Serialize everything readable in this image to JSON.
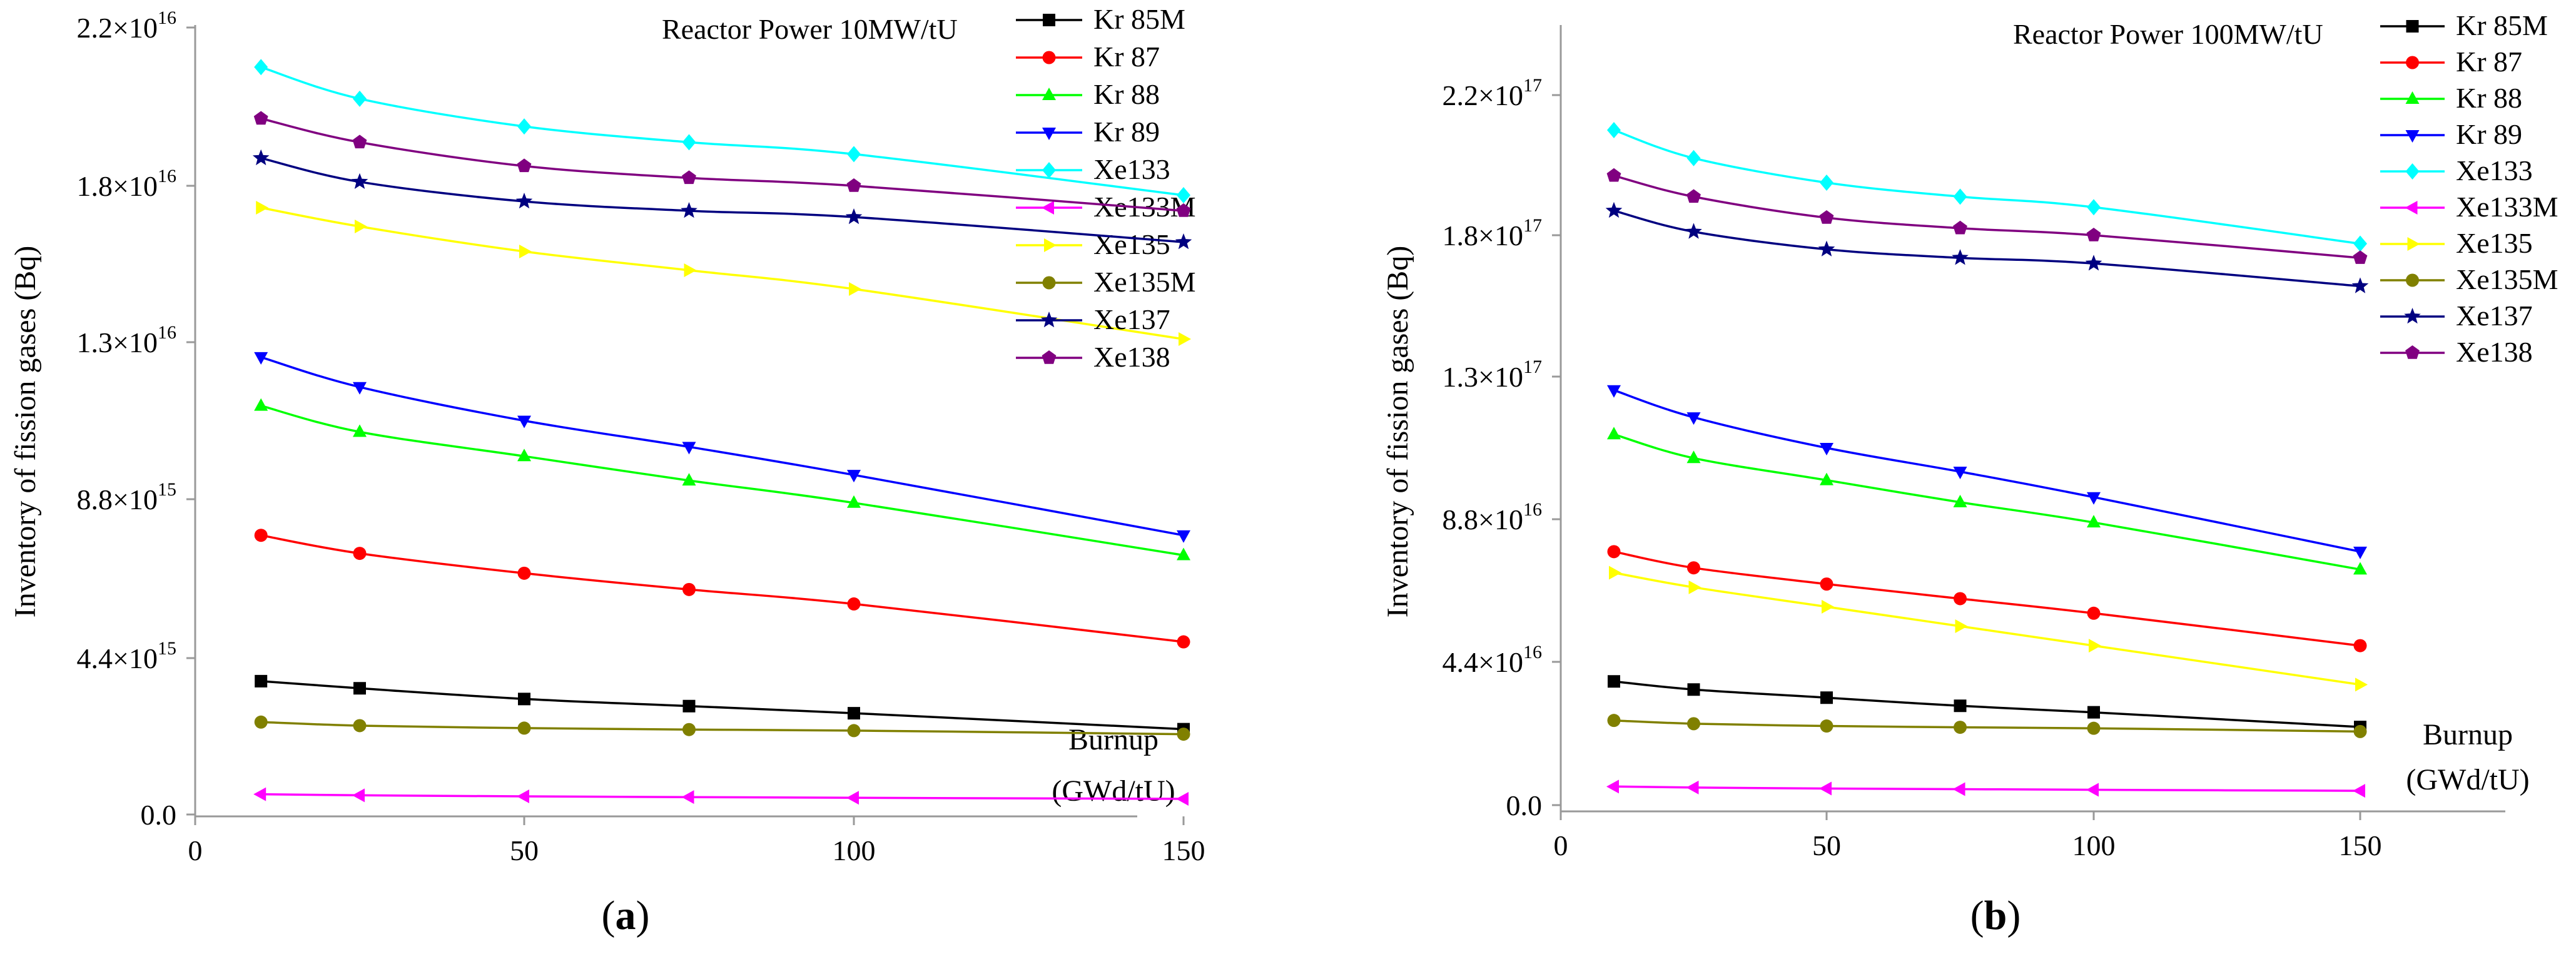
{
  "chart_data": [
    {
      "type": "line",
      "panel_label": "a",
      "annotation": "Reactor Power 10MW/tU",
      "ylabel": "Inventory of fission gases (Bq)",
      "xlabel_lines": [
        "Burnup",
        "(GWd/tU)"
      ],
      "x": [
        10,
        25,
        50,
        75,
        100,
        150
      ],
      "xlim": [
        0,
        175
      ],
      "xticks": [
        0,
        50,
        100,
        150
      ],
      "ylim": [
        0,
        2.2e+16
      ],
      "yticks": [
        {
          "value": 0,
          "mantissa": "0.0",
          "exp": ""
        },
        {
          "value": 4400000000000000.0,
          "mantissa": "4.4×10",
          "exp": "15"
        },
        {
          "value": 8800000000000000.0,
          "mantissa": "8.8×10",
          "exp": "15"
        },
        {
          "value": 1.3e+16,
          "mantissa": "1.3×10",
          "exp": "16"
        },
        {
          "value": 1.8e+16,
          "mantissa": "1.8×10",
          "exp": "16"
        },
        {
          "value": 2.2e+16,
          "mantissa": "2.2×10",
          "exp": "16"
        }
      ],
      "grid": false,
      "legend_position": "top-right",
      "series": [
        {
          "name": "Kr 85M",
          "color": "#000000",
          "marker": "square",
          "values": [
            3750000000000000.0,
            3550000000000000.0,
            3250000000000000.0,
            3050000000000000.0,
            2850000000000000.0,
            2400000000000000.0
          ]
        },
        {
          "name": "Kr 87",
          "color": "#ff0000",
          "marker": "circle",
          "values": [
            7800000000000000.0,
            7300000000000000.0,
            6750000000000000.0,
            6300000000000000.0,
            5900000000000000.0,
            4850000000000000.0
          ]
        },
        {
          "name": "Kr 88",
          "color": "#00ff00",
          "marker": "triangle-up",
          "values": [
            1.13e+16,
            1.06e+16,
            9950000000000000.0,
            9300000000000000.0,
            8700000000000000.0,
            7250000000000000.0
          ]
        },
        {
          "name": "Kr 89",
          "color": "#0000ff",
          "marker": "triangle-down",
          "values": [
            1.26e+16,
            1.18e+16,
            1.09e+16,
            1.02e+16,
            9450000000000000.0,
            7800000000000000.0
          ]
        },
        {
          "name": "Xe133",
          "color": "#00ffff",
          "marker": "diamond",
          "values": [
            2.1e+16,
            2.02e+16,
            1.95e+16,
            1.91e+16,
            1.88e+16,
            1.77e+16
          ]
        },
        {
          "name": "Xe133M",
          "color": "#ff00ff",
          "marker": "triangle-left",
          "values": [
            570000000000000.0,
            540000000000000.0,
            510000000000000.0,
            490000000000000.0,
            470000000000000.0,
            440000000000000.0
          ]
        },
        {
          "name": "Xe135",
          "color": "#ffff00",
          "marker": "triangle-right",
          "values": [
            1.73e+16,
            1.67e+16,
            1.59e+16,
            1.53e+16,
            1.47e+16,
            1.31e+16
          ]
        },
        {
          "name": "Xe135M",
          "color": "#808000",
          "marker": "circle",
          "values": [
            2600000000000000.0,
            2500000000000000.0,
            2430000000000000.0,
            2390000000000000.0,
            2360000000000000.0,
            2260000000000000.0
          ]
        },
        {
          "name": "Xe137",
          "color": "#000080",
          "marker": "star",
          "values": [
            1.87e+16,
            1.81e+16,
            1.75e+16,
            1.72e+16,
            1.7e+16,
            1.62e+16
          ]
        },
        {
          "name": "Xe138",
          "color": "#800080",
          "marker": "pentagon",
          "values": [
            1.97e+16,
            1.91e+16,
            1.85e+16,
            1.82e+16,
            1.8e+16,
            1.72e+16
          ]
        }
      ]
    },
    {
      "type": "line",
      "panel_label": "b",
      "annotation": "Reactor Power 100MW/tU",
      "ylabel": "Inventory of fission gases (Bq)",
      "xlabel_lines": [
        "Burnup",
        "(GWd/tU)"
      ],
      "x": [
        10,
        25,
        50,
        75,
        100,
        150
      ],
      "xlim": [
        0,
        175
      ],
      "xticks": [
        0,
        50,
        100,
        150
      ],
      "ylim": [
        0,
        2.5e+17
      ],
      "yticks": [
        {
          "value": 0,
          "mantissa": "0.0",
          "exp": ""
        },
        {
          "value": 4.4e+16,
          "mantissa": "4.4×10",
          "exp": "16"
        },
        {
          "value": 8.8e+16,
          "mantissa": "8.8×10",
          "exp": "16"
        },
        {
          "value": 1.3e+17,
          "mantissa": "1.3×10",
          "exp": "17"
        },
        {
          "value": 1.8e+17,
          "mantissa": "1.8×10",
          "exp": "17"
        },
        {
          "value": 2.2e+17,
          "mantissa": "2.2×10",
          "exp": "17"
        }
      ],
      "grid": false,
      "legend_position": "top-right",
      "series": [
        {
          "name": "Kr 85M",
          "color": "#000000",
          "marker": "square",
          "values": [
            3.8e+16,
            3.55e+16,
            3.3e+16,
            3.05e+16,
            2.85e+16,
            2.4e+16
          ]
        },
        {
          "name": "Kr 87",
          "color": "#ff0000",
          "marker": "circle",
          "values": [
            7.8e+16,
            7.3e+16,
            6.8e+16,
            6.35e+16,
            5.9e+16,
            4.9e+16
          ]
        },
        {
          "name": "Kr 88",
          "color": "#00ff00",
          "marker": "triangle-up",
          "values": [
            1.13e+17,
            1.06e+17,
            9.95e+16,
            9.3e+16,
            8.7e+16,
            7.25e+16
          ]
        },
        {
          "name": "Kr 89",
          "color": "#0000ff",
          "marker": "triangle-down",
          "values": [
            1.26e+17,
            1.18e+17,
            1.09e+17,
            1.02e+17,
            9.45e+16,
            7.8e+16
          ]
        },
        {
          "name": "Xe133",
          "color": "#00ffff",
          "marker": "diamond",
          "values": [
            2.1e+17,
            2.02e+17,
            1.95e+17,
            1.91e+17,
            1.88e+17,
            1.77e+17
          ]
        },
        {
          "name": "Xe133M",
          "color": "#ff00ff",
          "marker": "triangle-left",
          "values": [
            5700000000000000.0,
            5400000000000000.0,
            5100000000000000.0,
            4900000000000000.0,
            4700000000000000.0,
            4400000000000000.0
          ]
        },
        {
          "name": "Xe135",
          "color": "#ffff00",
          "marker": "triangle-right",
          "values": [
            7.15e+16,
            6.7e+16,
            6.1e+16,
            5.5e+16,
            4.9e+16,
            3.7e+16
          ]
        },
        {
          "name": "Xe135M",
          "color": "#808000",
          "marker": "circle",
          "values": [
            2.6e+16,
            2.5e+16,
            2.43e+16,
            2.39e+16,
            2.36e+16,
            2.26e+16
          ]
        },
        {
          "name": "Xe137",
          "color": "#000080",
          "marker": "star",
          "values": [
            1.87e+17,
            1.81e+17,
            1.75e+17,
            1.72e+17,
            1.7e+17,
            1.62e+17
          ]
        },
        {
          "name": "Xe138",
          "color": "#800080",
          "marker": "pentagon",
          "values": [
            1.97e+17,
            1.91e+17,
            1.85e+17,
            1.82e+17,
            1.8e+17,
            1.72e+17
          ]
        }
      ]
    }
  ]
}
